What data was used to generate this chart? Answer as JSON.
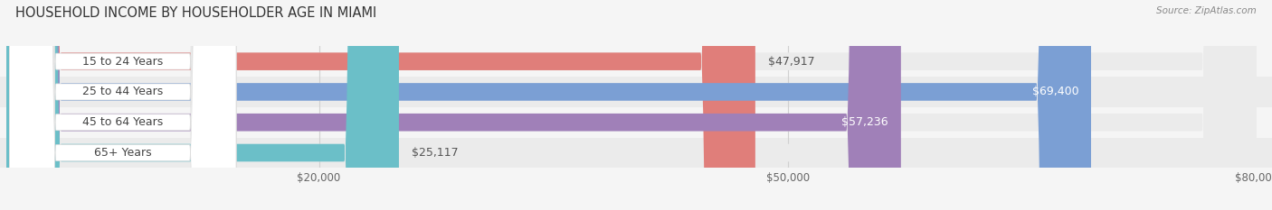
{
  "title": "HOUSEHOLD INCOME BY HOUSEHOLDER AGE IN MIAMI",
  "source": "Source: ZipAtlas.com",
  "categories": [
    "15 to 24 Years",
    "25 to 44 Years",
    "45 to 64 Years",
    "65+ Years"
  ],
  "values": [
    47917,
    69400,
    57236,
    25117
  ],
  "bar_colors": [
    "#E07E7A",
    "#7B9FD4",
    "#A080B8",
    "#6BBFC8"
  ],
  "bar_bg_color": "#EBEBEB",
  "row_bg_colors": [
    "#F5F5F5",
    "#EFEFEF",
    "#F5F5F5",
    "#EFEFEF"
  ],
  "value_labels": [
    "$47,917",
    "$69,400",
    "$57,236",
    "$25,117"
  ],
  "value_inside": [
    false,
    true,
    true,
    false
  ],
  "xlim": [
    0,
    80000
  ],
  "xticks": [
    20000,
    50000,
    80000
  ],
  "xtick_labels": [
    "$20,000",
    "$50,000",
    "$80,000"
  ],
  "background_color": "#F5F5F5",
  "title_fontsize": 10.5,
  "source_fontsize": 7.5,
  "bar_label_fontsize": 9,
  "value_label_fontsize": 9,
  "tick_fontsize": 8.5
}
